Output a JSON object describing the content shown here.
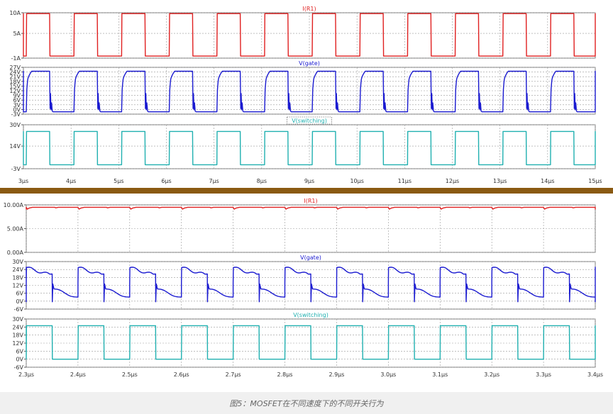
{
  "caption": "图5：MOSFET在不同速度下的不同开关行为",
  "colors": {
    "current": "#e02020",
    "gate": "#1a1ad0",
    "switching": "#20b0b0",
    "divider": "#8a5a12",
    "grid": "#999999"
  },
  "chart_data": [
    {
      "type": "line",
      "xlim": [
        3,
        15
      ],
      "x_unit": "µs",
      "x_ticks": [
        "3µs",
        "4µs",
        "5µs",
        "6µs",
        "7µs",
        "8µs",
        "9µs",
        "10µs",
        "11µs",
        "12µs",
        "13µs",
        "14µs",
        "15µs"
      ],
      "period": 1.0,
      "high_start": 0.06,
      "duty": 0.49,
      "panels": [
        {
          "title": "I(R1)",
          "color": "current",
          "shape": "current_slow",
          "ylim": [
            -1,
            10
          ],
          "yticks": [
            "10A",
            "5A",
            "-1A"
          ],
          "high": 9.8,
          "low": -0.5
        },
        {
          "title": "V(gate)",
          "color": "gate",
          "shape": "gate_slow",
          "ylim": [
            -3,
            27
          ],
          "yticks": [
            "27V",
            "24V",
            "21V",
            "18V",
            "15V",
            "12V",
            "9V",
            "6V",
            "3V",
            "0V",
            "-3V"
          ],
          "high": 24.5,
          "low": -1.5
        },
        {
          "title": "V(switching)",
          "color": "switching",
          "shape": "square",
          "ylim": [
            -3,
            30
          ],
          "yticks": [
            "30V",
            "14V",
            "-3V"
          ],
          "high": 25,
          "low": 0
        }
      ]
    },
    {
      "type": "line",
      "xlim": [
        2.3,
        3.4
      ],
      "x_unit": "µs",
      "x_ticks": [
        "2.3µs",
        "2.4µs",
        "2.5µs",
        "2.6µs",
        "2.7µs",
        "2.8µs",
        "2.9µs",
        "3.0µs",
        "3.1µs",
        "3.2µs",
        "3.3µs",
        "3.4µs"
      ],
      "period": 0.1,
      "high_start": 0.0,
      "duty": 0.5,
      "panels": [
        {
          "title": "I(R1)",
          "color": "current",
          "shape": "current_fast",
          "ylim": [
            0,
            10
          ],
          "yticks": [
            "10.00A",
            "5.00A",
            "0.00A"
          ],
          "high": 9.5,
          "low": 9.1
        },
        {
          "title": "V(gate)",
          "color": "gate",
          "shape": "gate_fast",
          "ylim": [
            -6,
            30
          ],
          "yticks": [
            "30V",
            "24V",
            "18V",
            "12V",
            "6V",
            "0V",
            "-6V"
          ],
          "high": 26,
          "low": -1
        },
        {
          "title": "V(switching)",
          "color": "switching",
          "shape": "square",
          "ylim": [
            -6,
            30
          ],
          "yticks": [
            "30V",
            "24V",
            "18V",
            "12V",
            "6V",
            "0V",
            "-6V"
          ],
          "high": 25,
          "low": 0
        }
      ]
    }
  ]
}
